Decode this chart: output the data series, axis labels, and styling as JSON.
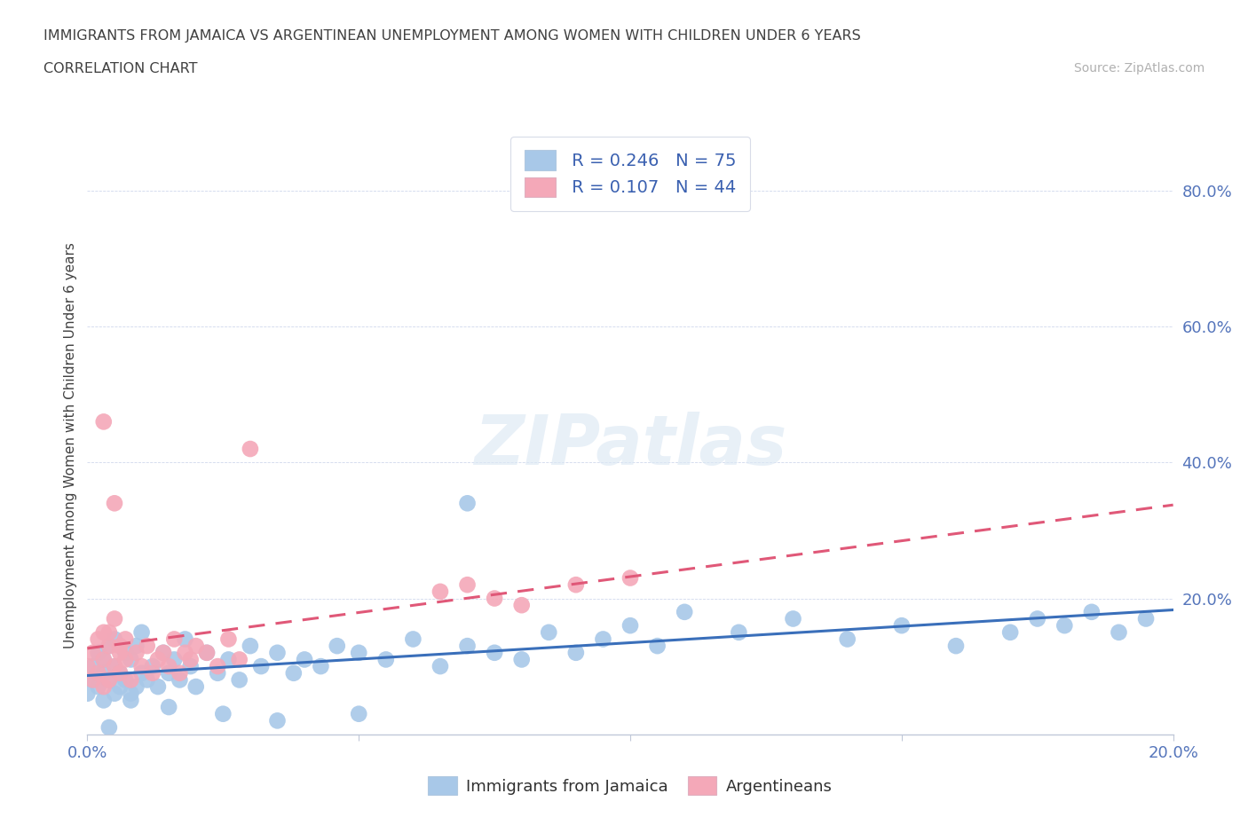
{
  "title_line1": "IMMIGRANTS FROM JAMAICA VS ARGENTINEAN UNEMPLOYMENT AMONG WOMEN WITH CHILDREN UNDER 6 YEARS",
  "title_line2": "CORRELATION CHART",
  "source": "Source: ZipAtlas.com",
  "ylabel_label": "Unemployment Among Women with Children Under 6 years",
  "xlim": [
    0.0,
    0.2
  ],
  "ylim": [
    0.0,
    0.85
  ],
  "jamaica_color": "#a8c8e8",
  "argentina_color": "#f4a8b8",
  "jamaica_line_color": "#3a6fba",
  "argentina_line_color": "#e05878",
  "R_jamaica": 0.246,
  "N_jamaica": 75,
  "R_argentina": 0.107,
  "N_argentina": 44,
  "watermark_text": "ZIPatlas",
  "jamaica_x": [
    0.0,
    0.001,
    0.001,
    0.002,
    0.002,
    0.003,
    0.003,
    0.003,
    0.004,
    0.004,
    0.005,
    0.005,
    0.005,
    0.006,
    0.006,
    0.007,
    0.007,
    0.008,
    0.008,
    0.009,
    0.009,
    0.01,
    0.01,
    0.011,
    0.012,
    0.013,
    0.014,
    0.015,
    0.016,
    0.017,
    0.018,
    0.019,
    0.02,
    0.022,
    0.024,
    0.026,
    0.028,
    0.03,
    0.032,
    0.035,
    0.038,
    0.04,
    0.043,
    0.046,
    0.05,
    0.055,
    0.06,
    0.065,
    0.07,
    0.075,
    0.08,
    0.085,
    0.09,
    0.095,
    0.1,
    0.105,
    0.11,
    0.12,
    0.13,
    0.14,
    0.15,
    0.16,
    0.17,
    0.175,
    0.18,
    0.185,
    0.19,
    0.195,
    0.008,
    0.015,
    0.025,
    0.035,
    0.004,
    0.05,
    0.07
  ],
  "jamaica_y": [
    0.06,
    0.08,
    0.1,
    0.07,
    0.12,
    0.05,
    0.09,
    0.11,
    0.08,
    0.13,
    0.06,
    0.1,
    0.14,
    0.07,
    0.09,
    0.12,
    0.08,
    0.06,
    0.11,
    0.07,
    0.13,
    0.09,
    0.15,
    0.08,
    0.1,
    0.07,
    0.12,
    0.09,
    0.11,
    0.08,
    0.14,
    0.1,
    0.07,
    0.12,
    0.09,
    0.11,
    0.08,
    0.13,
    0.1,
    0.12,
    0.09,
    0.11,
    0.1,
    0.13,
    0.12,
    0.11,
    0.14,
    0.1,
    0.13,
    0.12,
    0.11,
    0.15,
    0.12,
    0.14,
    0.16,
    0.13,
    0.18,
    0.15,
    0.17,
    0.14,
    0.16,
    0.13,
    0.15,
    0.17,
    0.16,
    0.18,
    0.15,
    0.17,
    0.05,
    0.04,
    0.03,
    0.02,
    0.01,
    0.03,
    0.34
  ],
  "argentina_x": [
    0.0,
    0.001,
    0.001,
    0.002,
    0.002,
    0.003,
    0.003,
    0.003,
    0.004,
    0.004,
    0.005,
    0.005,
    0.006,
    0.006,
    0.007,
    0.007,
    0.008,
    0.009,
    0.01,
    0.011,
    0.012,
    0.013,
    0.014,
    0.015,
    0.016,
    0.017,
    0.018,
    0.019,
    0.02,
    0.022,
    0.024,
    0.026,
    0.028,
    0.03,
    0.003,
    0.004,
    0.005,
    0.006,
    0.065,
    0.07,
    0.075,
    0.08,
    0.09,
    0.1
  ],
  "argentina_y": [
    0.1,
    0.08,
    0.12,
    0.09,
    0.14,
    0.07,
    0.11,
    0.15,
    0.08,
    0.13,
    0.34,
    0.1,
    0.12,
    0.09,
    0.11,
    0.14,
    0.08,
    0.12,
    0.1,
    0.13,
    0.09,
    0.11,
    0.12,
    0.1,
    0.14,
    0.09,
    0.12,
    0.11,
    0.13,
    0.12,
    0.1,
    0.14,
    0.11,
    0.42,
    0.46,
    0.15,
    0.17,
    0.13,
    0.21,
    0.22,
    0.2,
    0.19,
    0.22,
    0.23
  ]
}
